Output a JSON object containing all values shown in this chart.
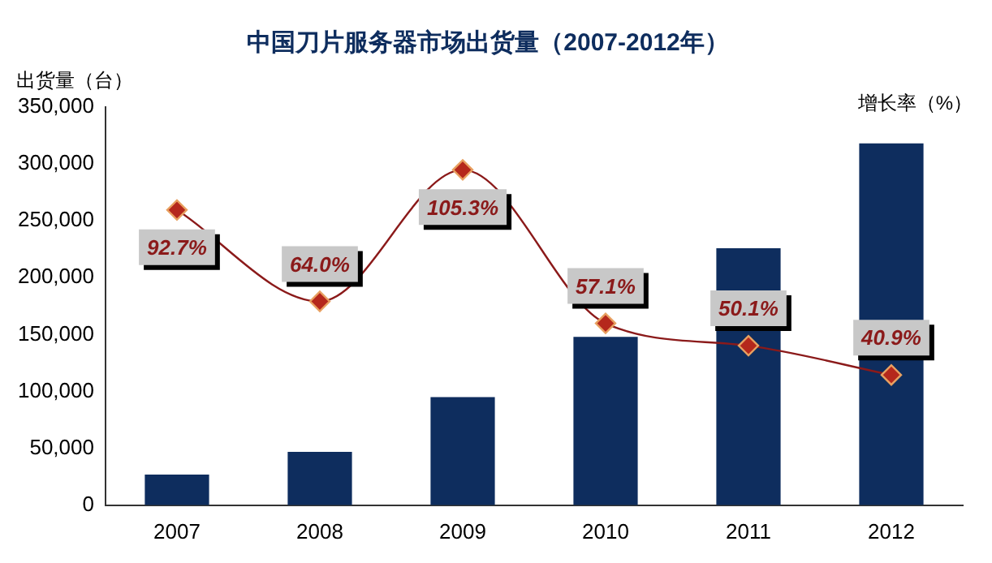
{
  "chart_data": {
    "type": "bar",
    "title": "中国刀片服务器市场出货量（2007-2012年）",
    "ylabel": "出货量（台）",
    "y2label": "增长率（%）",
    "categories": [
      "2007",
      "2008",
      "2009",
      "2010",
      "2011",
      "2012"
    ],
    "series": [
      {
        "color": "#0e2d5e",
        "values": [
          27000,
          47000,
          95000,
          148000,
          226000,
          318000
        ]
      },
      {
        "type": "line",
        "axis": "y2",
        "color": "#8b1a1a",
        "marker": "diamond",
        "values": [
          92.7,
          64.0,
          105.3,
          57.1,
          50.1,
          40.9
        ],
        "value_labels": [
          "92.7%",
          "64.0%",
          "105.3%",
          "57.1%",
          "50.1%",
          "40.9%"
        ]
      }
    ],
    "ylim": [
      0,
      350000
    ],
    "yticks": [
      {
        "value": 0,
        "label": "0"
      },
      {
        "value": 50000,
        "label": "50,000"
      },
      {
        "value": 100000,
        "label": "100,000"
      },
      {
        "value": 150000,
        "label": "150,000"
      },
      {
        "value": 200000,
        "label": "200,000"
      },
      {
        "value": 250000,
        "label": "250,000"
      },
      {
        "value": 300000,
        "label": "300,000"
      },
      {
        "value": 350000,
        "label": "350,000"
      }
    ],
    "y2lim": [
      0,
      125
    ],
    "grid": false,
    "legend": false
  }
}
